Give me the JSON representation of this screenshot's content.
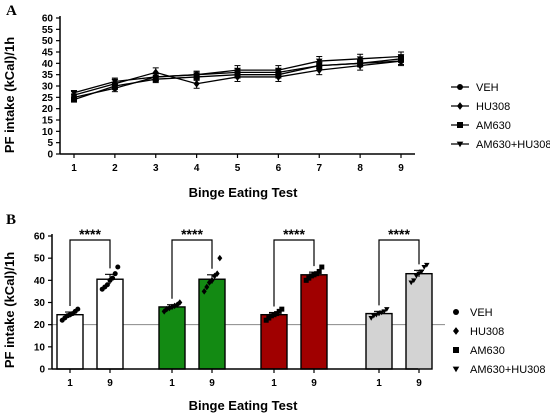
{
  "chart_data": [
    {
      "panel": "A",
      "type": "line",
      "title": "",
      "xlabel": "Binge Eating Test",
      "ylabel": "PF intake (kCal)/1h",
      "x": [
        1,
        2,
        3,
        4,
        5,
        6,
        7,
        8,
        9
      ],
      "ylim": [
        0,
        60
      ],
      "yticks": [
        0,
        5,
        10,
        15,
        20,
        25,
        30,
        35,
        40,
        45,
        50,
        55,
        60
      ],
      "grid": false,
      "legend_position": "right",
      "series": [
        {
          "name": "VEH",
          "marker": "circle",
          "values": [
            25,
            29,
            34,
            35,
            36,
            36,
            39,
            40,
            41
          ],
          "errors": [
            1.5,
            1.5,
            1.5,
            1.5,
            1.5,
            1.5,
            1.5,
            1.5,
            1.5
          ]
        },
        {
          "name": "HU308",
          "marker": "diamond",
          "values": [
            26,
            31,
            36,
            31,
            34,
            34,
            37,
            39,
            41
          ],
          "errors": [
            1.5,
            2,
            2,
            2,
            2,
            2,
            2,
            2,
            2
          ]
        },
        {
          "name": "AM630",
          "marker": "square",
          "values": [
            24,
            30,
            33,
            34,
            35,
            35,
            39,
            40,
            42
          ],
          "errors": [
            1,
            1.5,
            1.5,
            1.5,
            1.5,
            1.5,
            1.5,
            1.5,
            1.5
          ]
        },
        {
          "name": "AM630+HU308",
          "marker": "triangle-down",
          "values": [
            27,
            32,
            34,
            35,
            37,
            37,
            41,
            42,
            43
          ],
          "errors": [
            1,
            1.5,
            1.5,
            1.5,
            2,
            2,
            2,
            2,
            2
          ]
        }
      ]
    },
    {
      "panel": "B",
      "type": "bar",
      "title": "",
      "xlabel": "Binge Eating Test",
      "ylabel": "PF intake (kCal)/1h",
      "ylim": [
        0,
        60
      ],
      "yticks": [
        0,
        10,
        20,
        30,
        40,
        50,
        60
      ],
      "reference_line": 20,
      "legend_position": "right",
      "significance_label": "****",
      "groups": [
        {
          "name": "VEH",
          "marker": "circle",
          "color": "#ffffff",
          "bars": [
            {
              "x": "1",
              "value": 24.5,
              "error": 1.2,
              "points": [
                22,
                23,
                24,
                24.5,
                25,
                26,
                27
              ]
            },
            {
              "x": "9",
              "value": 40.5,
              "error": 2.2,
              "points": [
                36,
                37,
                38,
                40,
                41,
                43,
                46
              ]
            }
          ]
        },
        {
          "name": "HU308",
          "marker": "diamond",
          "color": "#138a13",
          "bars": [
            {
              "x": "1",
              "value": 28,
              "error": 1,
              "points": [
                26,
                27,
                27.5,
                28,
                28.5,
                29,
                30
              ]
            },
            {
              "x": "9",
              "value": 40.5,
              "error": 2,
              "points": [
                35,
                37,
                39,
                40,
                42,
                43,
                50
              ]
            }
          ]
        },
        {
          "name": "AM630",
          "marker": "square",
          "color": "#a00000",
          "bars": [
            {
              "x": "1",
              "value": 24.5,
              "error": 1,
              "points": [
                22,
                23,
                24,
                24.5,
                25,
                26,
                27
              ]
            },
            {
              "x": "9",
              "value": 42.5,
              "error": 1.2,
              "points": [
                40,
                41,
                42,
                42.5,
                43,
                44,
                46
              ]
            }
          ]
        },
        {
          "name": "AM630+HU308",
          "marker": "triangle-down",
          "color": "#d3d3d3",
          "bars": [
            {
              "x": "1",
              "value": 25,
              "error": 1,
              "points": [
                23,
                24,
                24.5,
                25,
                25.5,
                26,
                27
              ]
            },
            {
              "x": "9",
              "value": 43,
              "error": 1.5,
              "points": [
                39,
                40,
                42,
                43,
                44,
                46,
                47
              ]
            }
          ]
        }
      ]
    }
  ]
}
